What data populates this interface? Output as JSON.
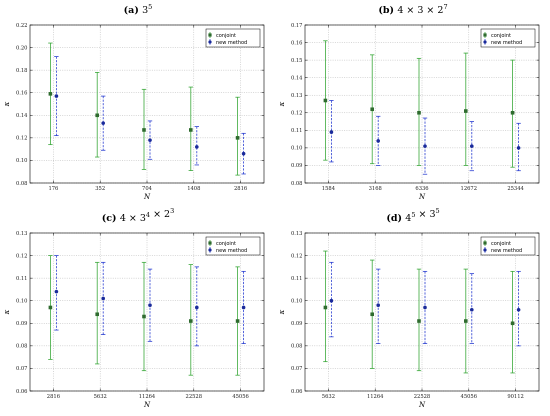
{
  "colors": {
    "conjoint": "#3aa83a",
    "conjoint_marker": "#2f6b2f",
    "new": "#2b3fd1",
    "new_marker": "#1a2a9a"
  },
  "chart_data": [
    {
      "type": "scatter",
      "panel_letter": "(a)",
      "title_math": {
        "base": "3",
        "sup": "5",
        "rest": []
      },
      "xlabel": "N",
      "ylabel": "κ",
      "categories": [
        "176",
        "352",
        "704",
        "1408",
        "2816"
      ],
      "ylim": [
        0.08,
        0.22
      ],
      "yticks": [
        "0.08",
        "0.10",
        "0.12",
        "0.14",
        "0.16",
        "0.18",
        "0.20",
        "0.22"
      ],
      "legend_position": "top-right",
      "grid": true,
      "series": [
        {
          "name": "conjoint",
          "values": [
            0.159,
            0.14,
            0.127,
            0.127,
            0.12
          ],
          "lower": [
            0.114,
            0.103,
            0.092,
            0.091,
            0.087
          ],
          "upper": [
            0.204,
            0.178,
            0.163,
            0.165,
            0.156
          ]
        },
        {
          "name": "new method",
          "values": [
            0.157,
            0.133,
            0.118,
            0.112,
            0.106
          ],
          "lower": [
            0.122,
            0.109,
            0.101,
            0.096,
            0.088
          ],
          "upper": [
            0.192,
            0.157,
            0.135,
            0.13,
            0.124
          ]
        }
      ]
    },
    {
      "type": "scatter",
      "panel_letter": "(b)",
      "title_math": {
        "base": "4 × 3 × 2",
        "sup": "7",
        "rest": []
      },
      "xlabel": "N",
      "ylabel": "κ",
      "categories": [
        "1584",
        "3168",
        "6336",
        "12672",
        "25344"
      ],
      "ylim": [
        0.08,
        0.17
      ],
      "yticks": [
        "0.08",
        "0.09",
        "0.10",
        "0.11",
        "0.12",
        "0.13",
        "0.14",
        "0.15",
        "0.16",
        "0.17"
      ],
      "legend_position": "top-right",
      "grid": true,
      "series": [
        {
          "name": "conjoint",
          "values": [
            0.127,
            0.122,
            0.12,
            0.121,
            0.12
          ],
          "lower": [
            0.093,
            0.091,
            0.09,
            0.09,
            0.089
          ],
          "upper": [
            0.161,
            0.153,
            0.151,
            0.154,
            0.15
          ]
        },
        {
          "name": "new method",
          "values": [
            0.109,
            0.104,
            0.101,
            0.101,
            0.1
          ],
          "lower": [
            0.092,
            0.09,
            0.085,
            0.087,
            0.087
          ],
          "upper": [
            0.127,
            0.118,
            0.117,
            0.115,
            0.114
          ]
        }
      ]
    },
    {
      "type": "scatter",
      "panel_letter": "(c)",
      "title_math": {
        "base": "4 × 3",
        "sup": "4",
        "rest": [
          {
            "base": " × 2",
            "sup": "3"
          }
        ]
      },
      "xlabel": "N",
      "ylabel": "κ",
      "categories": [
        "2816",
        "5632",
        "11264",
        "22528",
        "45056"
      ],
      "ylim": [
        0.06,
        0.13
      ],
      "yticks": [
        "0.06",
        "0.07",
        "0.08",
        "0.09",
        "0.10",
        "0.11",
        "0.12",
        "0.13"
      ],
      "legend_position": "top-right",
      "grid": true,
      "series": [
        {
          "name": "conjoint",
          "values": [
            0.097,
            0.094,
            0.093,
            0.091,
            0.091
          ],
          "lower": [
            0.074,
            0.072,
            0.069,
            0.067,
            0.067
          ],
          "upper": [
            0.12,
            0.117,
            0.117,
            0.116,
            0.115
          ]
        },
        {
          "name": "new method",
          "values": [
            0.104,
            0.101,
            0.098,
            0.097,
            0.097
          ],
          "lower": [
            0.087,
            0.085,
            0.082,
            0.08,
            0.081
          ],
          "upper": [
            0.12,
            0.117,
            0.114,
            0.115,
            0.113
          ]
        }
      ]
    },
    {
      "type": "scatter",
      "panel_letter": "(d)",
      "title_math": {
        "base": "4",
        "sup": "5",
        "rest": [
          {
            "base": " × 3",
            "sup": "5"
          }
        ]
      },
      "xlabel": "N",
      "ylabel": "κ",
      "categories": [
        "5632",
        "11264",
        "22528",
        "45056",
        "90112"
      ],
      "ylim": [
        0.06,
        0.13
      ],
      "yticks": [
        "0.06",
        "0.07",
        "0.08",
        "0.09",
        "0.10",
        "0.11",
        "0.12",
        "0.13"
      ],
      "legend_position": "top-right",
      "grid": true,
      "series": [
        {
          "name": "conjoint",
          "values": [
            0.097,
            0.094,
            0.091,
            0.091,
            0.09
          ],
          "lower": [
            0.073,
            0.07,
            0.069,
            0.068,
            0.068
          ],
          "upper": [
            0.122,
            0.118,
            0.114,
            0.114,
            0.113
          ]
        },
        {
          "name": "new method",
          "values": [
            0.1,
            0.098,
            0.097,
            0.096,
            0.096
          ],
          "lower": [
            0.084,
            0.081,
            0.081,
            0.081,
            0.08
          ],
          "upper": [
            0.117,
            0.114,
            0.113,
            0.112,
            0.113
          ]
        }
      ]
    }
  ]
}
